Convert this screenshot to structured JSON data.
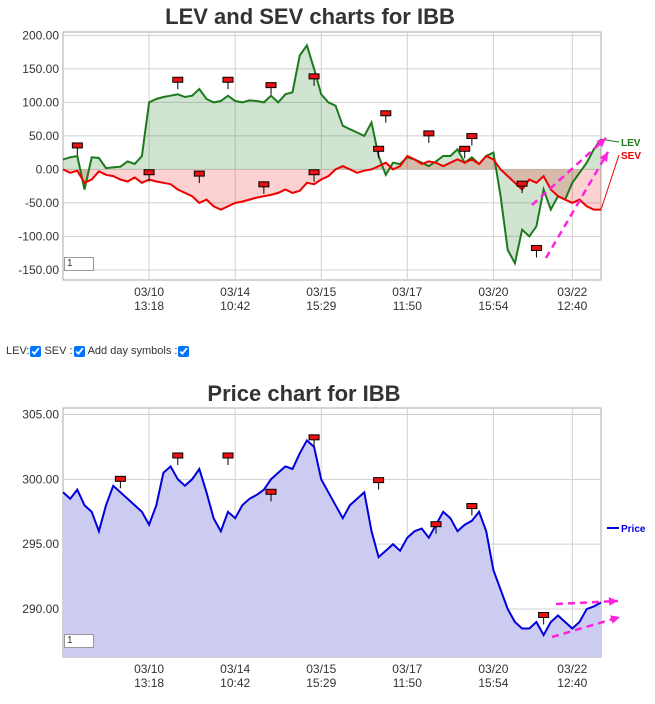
{
  "controls": {
    "lev_label": "LEV:",
    "sev_label": "SEV :",
    "day_symbols_label": "Add day symbols :",
    "zoom_value": "1"
  },
  "colors": {
    "lev": "#1b7a1b",
    "sev": "#ee0000",
    "price": "#0000dd",
    "price_fill": "#ccccf3",
    "trend_arrow": "#ff22dd"
  },
  "chart_data": [
    {
      "type": "line",
      "title": "LEV and SEV charts for IBB",
      "ylim": [
        -165,
        205
      ],
      "yticks": [
        "200.00",
        "150.00",
        "100.00",
        "50.00",
        "0.00",
        "-50.00",
        "-100.00",
        "-150.00"
      ],
      "ytick_values": [
        200,
        150,
        100,
        50,
        0,
        -50,
        -100,
        -150
      ],
      "xticks": [
        {
          "date": "03/10",
          "time": "13:18",
          "i": 12
        },
        {
          "date": "03/14",
          "time": "10:42",
          "i": 24
        },
        {
          "date": "03/15",
          "time": "15:29",
          "i": 36
        },
        {
          "date": "03/17",
          "time": "11:50",
          "i": 48
        },
        {
          "date": "03/20",
          "time": "15:54",
          "i": 60
        },
        {
          "date": "03/22",
          "time": "12:40",
          "i": 71
        }
      ],
      "n": 76,
      "series": [
        {
          "name": "LEV",
          "values": [
            15,
            18,
            20,
            -30,
            18,
            17,
            2,
            3,
            4,
            12,
            8,
            20,
            100,
            105,
            108,
            110,
            112,
            108,
            110,
            120,
            105,
            100,
            102,
            110,
            102,
            100,
            103,
            102,
            100,
            110,
            100,
            112,
            115,
            170,
            185,
            150,
            112,
            100,
            95,
            65,
            60,
            55,
            50,
            70,
            20,
            -8,
            10,
            8,
            18,
            15,
            10,
            5,
            12,
            20,
            20,
            30,
            10,
            18,
            8,
            20,
            25,
            -40,
            -120,
            -140,
            -90,
            -100,
            -85,
            -30,
            -60,
            -40,
            -45,
            -20,
            -5,
            10,
            30,
            45
          ]
        },
        {
          "name": "SEV",
          "values": [
            0,
            -5,
            -2,
            -20,
            -15,
            -3,
            -8,
            -10,
            -15,
            -18,
            -12,
            -20,
            -15,
            -18,
            -20,
            -22,
            -30,
            -35,
            -40,
            -50,
            -45,
            -55,
            -60,
            -55,
            -50,
            -48,
            -45,
            -42,
            -40,
            -38,
            -35,
            -30,
            -35,
            -32,
            -20,
            -22,
            -15,
            -10,
            0,
            5,
            0,
            -5,
            -2,
            0,
            5,
            10,
            0,
            5,
            20,
            15,
            8,
            12,
            10,
            5,
            10,
            15,
            10,
            15,
            8,
            20,
            15,
            0,
            -10,
            -20,
            -30,
            -15,
            -20,
            -10,
            -30,
            -40,
            -45,
            -50,
            -45,
            -55,
            -60,
            -60
          ]
        }
      ],
      "day_markers": [
        {
          "series": "LEV",
          "i": 2,
          "value": 35
        },
        {
          "series": "LEV",
          "i": 16,
          "value": 133
        },
        {
          "series": "LEV",
          "i": 23,
          "value": 133
        },
        {
          "series": "LEV",
          "i": 29,
          "value": 125
        },
        {
          "series": "LEV",
          "i": 35,
          "value": 138
        },
        {
          "series": "LEV",
          "i": 45,
          "value": 83
        },
        {
          "series": "LEV",
          "i": 51,
          "value": 53
        },
        {
          "series": "LEV",
          "i": 57,
          "value": 49
        },
        {
          "series": "LEV",
          "i": 66,
          "value": -118
        },
        {
          "series": "SEV",
          "i": 12,
          "value": -5
        },
        {
          "series": "SEV",
          "i": 19,
          "value": -7
        },
        {
          "series": "SEV",
          "i": 28,
          "value": -23
        },
        {
          "series": "SEV",
          "i": 35,
          "value": -5
        },
        {
          "series": "SEV",
          "i": 44,
          "value": 30
        },
        {
          "series": "SEV",
          "i": 56,
          "value": 30
        },
        {
          "series": "SEV",
          "i": 64,
          "value": -22
        }
      ]
    },
    {
      "type": "area",
      "title": "Price chart for IBB",
      "ylim": [
        286.3,
        305.5
      ],
      "yticks": [
        "305.00",
        "300.00",
        "295.00",
        "290.00"
      ],
      "ytick_values": [
        305,
        300,
        295,
        290
      ],
      "xticks": [
        {
          "date": "03/10",
          "time": "13:18",
          "i": 12
        },
        {
          "date": "03/14",
          "time": "10:42",
          "i": 24
        },
        {
          "date": "03/15",
          "time": "15:29",
          "i": 36
        },
        {
          "date": "03/17",
          "time": "11:50",
          "i": 48
        },
        {
          "date": "03/20",
          "time": "15:54",
          "i": 60
        },
        {
          "date": "03/22",
          "time": "12:40",
          "i": 71
        }
      ],
      "n": 76,
      "series": [
        {
          "name": "Price",
          "values": [
            299.0,
            298.5,
            299.2,
            298.0,
            297.5,
            296.0,
            298.0,
            299.5,
            299.0,
            298.5,
            298.0,
            297.5,
            296.5,
            298.0,
            300.5,
            301.0,
            300.0,
            299.5,
            300.0,
            300.8,
            299.0,
            297.0,
            296.0,
            297.5,
            297.0,
            298.0,
            298.5,
            298.8,
            299.2,
            300.0,
            300.5,
            301.0,
            300.8,
            302.0,
            303.0,
            302.5,
            300.0,
            299.0,
            298.0,
            297.0,
            298.0,
            298.5,
            299.0,
            296.0,
            294.0,
            294.5,
            295.0,
            294.5,
            295.5,
            296.0,
            296.2,
            295.5,
            296.5,
            297.5,
            297.0,
            296.0,
            296.5,
            296.8,
            297.5,
            296.0,
            293.0,
            291.5,
            290.0,
            289.0,
            288.5,
            288.5,
            289.0,
            288.0,
            289.0,
            289.5,
            289.0,
            288.5,
            289.0,
            290.0,
            290.2,
            290.5
          ]
        }
      ],
      "day_markers": [
        {
          "i": 8,
          "value": 300.0
        },
        {
          "i": 16,
          "value": 301.8
        },
        {
          "i": 23,
          "value": 301.8
        },
        {
          "i": 29,
          "value": 299.0
        },
        {
          "i": 35,
          "value": 303.2
        },
        {
          "i": 44,
          "value": 299.9
        },
        {
          "i": 52,
          "value": 296.5
        },
        {
          "i": 57,
          "value": 297.9
        },
        {
          "i": 67,
          "value": 289.5
        }
      ]
    }
  ]
}
